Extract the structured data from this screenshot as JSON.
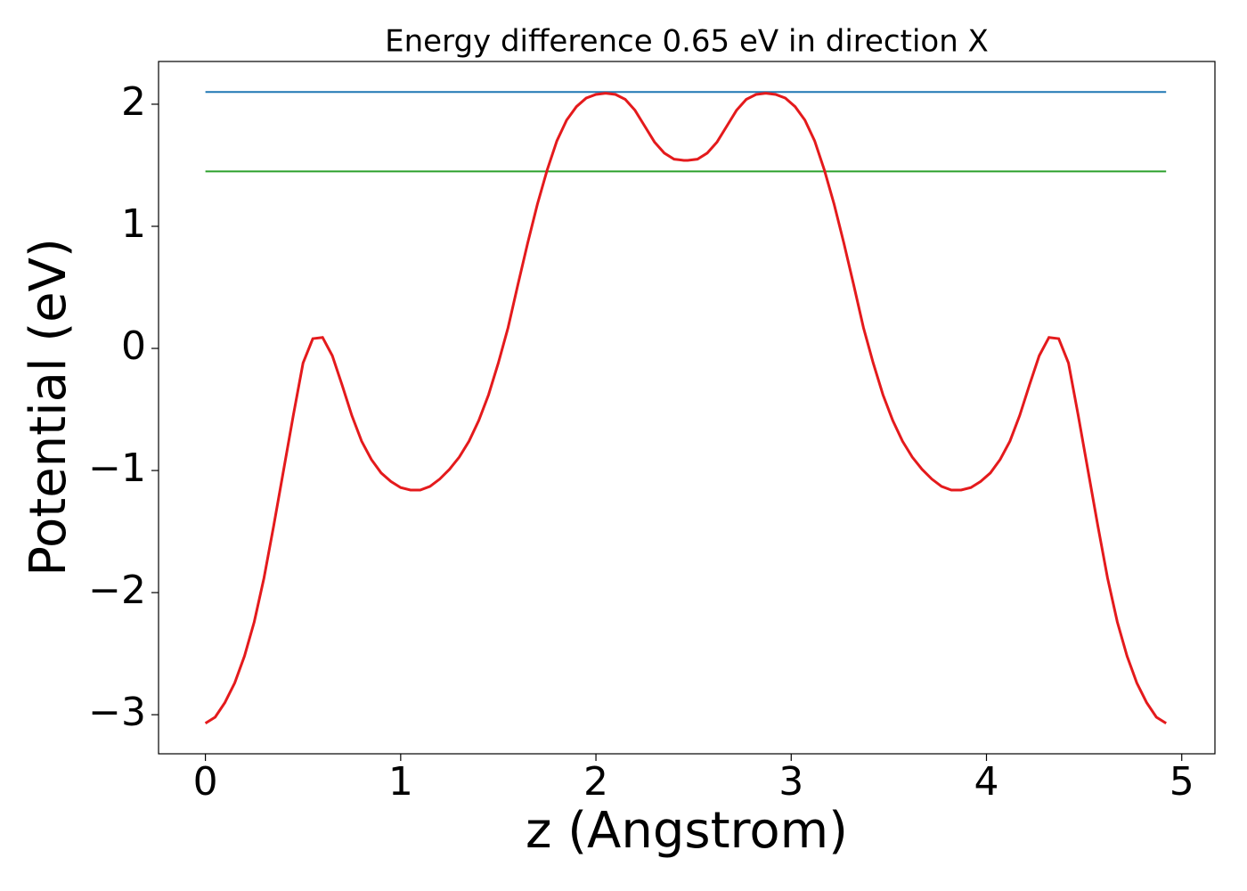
{
  "chart_data": {
    "type": "line",
    "title": "Energy difference 0.65 eV in direction X",
    "x_label": "z (Angstrom)",
    "y_label": "Potential (eV)",
    "xlim": [
      -0.24,
      5.17
    ],
    "ylim": [
      -3.32,
      2.35
    ],
    "xticks": [
      0,
      1,
      2,
      3,
      4,
      5
    ],
    "yticks": [
      {
        "value": -3,
        "label": "−3"
      },
      {
        "value": -2,
        "label": "−2"
      },
      {
        "value": -1,
        "label": "−1"
      },
      0,
      1,
      2
    ],
    "series": [
      {
        "color": "#1f77b4",
        "x": [
          0,
          4.92
        ],
        "values": [
          2.1,
          2.1
        ]
      },
      {
        "color": "#2ca02c",
        "x": [
          0,
          4.92
        ],
        "values": [
          1.45,
          1.45
        ]
      },
      {
        "color": "#e41a1c",
        "x": [
          0,
          0.05,
          0.1,
          0.15,
          0.2,
          0.25,
          0.3,
          0.35,
          0.4,
          0.45,
          0.5,
          0.55,
          0.6,
          0.65,
          0.7,
          0.75,
          0.8,
          0.85,
          0.9,
          0.95,
          1.0,
          1.05,
          1.1,
          1.15,
          1.2,
          1.25,
          1.3,
          1.35,
          1.4,
          1.45,
          1.5,
          1.55,
          1.6,
          1.65,
          1.7,
          1.75,
          1.8,
          1.85,
          1.9,
          1.95,
          2.0,
          2.05,
          2.1,
          2.15,
          2.2,
          2.25,
          2.3,
          2.35,
          2.4,
          2.45,
          2.47,
          2.52,
          2.57,
          2.62,
          2.67,
          2.72,
          2.77,
          2.82,
          2.87,
          2.92,
          2.97,
          3.02,
          3.07,
          3.12,
          3.17,
          3.22,
          3.27,
          3.32,
          3.37,
          3.42,
          3.47,
          3.52,
          3.57,
          3.62,
          3.67,
          3.72,
          3.77,
          3.82,
          3.87,
          3.92,
          3.97,
          4.02,
          4.07,
          4.12,
          4.17,
          4.22,
          4.27,
          4.32,
          4.37,
          4.42,
          4.47,
          4.52,
          4.57,
          4.62,
          4.67,
          4.72,
          4.77,
          4.82,
          4.87,
          4.92
        ],
        "values": [
          -3.07,
          -3.02,
          -2.9,
          -2.74,
          -2.52,
          -2.24,
          -1.88,
          -1.45,
          -1.0,
          -0.55,
          -0.12,
          0.08,
          0.09,
          -0.06,
          -0.3,
          -0.55,
          -0.76,
          -0.91,
          -1.02,
          -1.09,
          -1.14,
          -1.16,
          -1.16,
          -1.13,
          -1.07,
          -0.99,
          -0.89,
          -0.76,
          -0.59,
          -0.38,
          -0.12,
          0.17,
          0.52,
          0.86,
          1.18,
          1.46,
          1.7,
          1.87,
          1.98,
          2.05,
          2.08,
          2.09,
          2.08,
          2.04,
          1.95,
          1.82,
          1.69,
          1.6,
          1.55,
          1.54,
          1.54,
          1.55,
          1.6,
          1.69,
          1.82,
          1.95,
          2.04,
          2.08,
          2.09,
          2.08,
          2.05,
          1.98,
          1.87,
          1.7,
          1.46,
          1.18,
          0.86,
          0.52,
          0.17,
          -0.12,
          -0.38,
          -0.59,
          -0.76,
          -0.89,
          -0.99,
          -1.07,
          -1.13,
          -1.16,
          -1.16,
          -1.14,
          -1.09,
          -1.02,
          -0.91,
          -0.76,
          -0.55,
          -0.3,
          -0.06,
          0.09,
          0.08,
          -0.12,
          -0.55,
          -1.0,
          -1.45,
          -1.88,
          -2.24,
          -2.52,
          -2.74,
          -2.9,
          -3.02,
          -3.07
        ]
      }
    ]
  }
}
